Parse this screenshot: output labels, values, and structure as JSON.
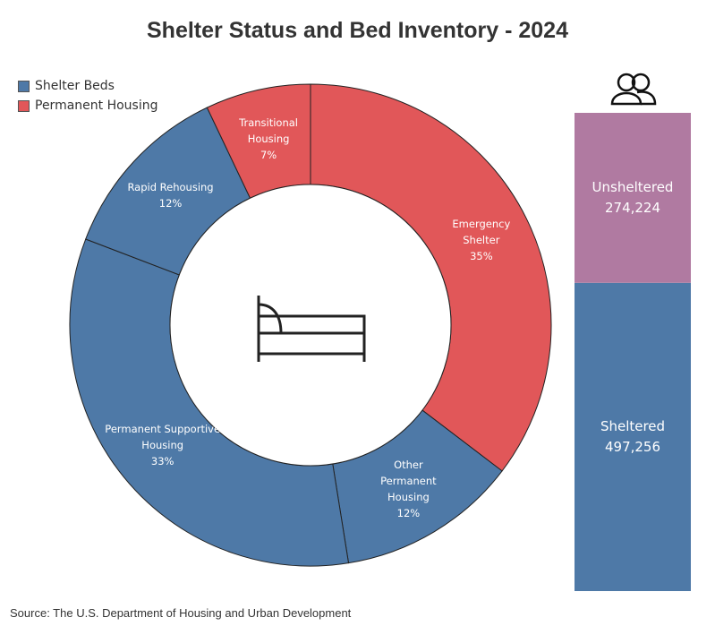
{
  "title": "Shelter Status and Bed Inventory - 2024",
  "source": "Source: The U.S. Department of Housing and Urban Development",
  "chart_data": [
    {
      "type": "donut",
      "categories": [
        "Emergency Shelter",
        "Other Permanent Housing",
        "Permanent Supportive Housing",
        "Rapid Rehousing",
        "Transitional Housing"
      ],
      "values": [
        35,
        12,
        33,
        12,
        7
      ],
      "value_labels": [
        "35%",
        "12%",
        "33%",
        "12%",
        "7%"
      ],
      "colors": [
        "#e15759",
        "#4e79a7",
        "#4e79a7",
        "#4e79a7",
        "#e15759"
      ],
      "legend": [
        {
          "name": "Shelter Beds",
          "color": "#4e79a7"
        },
        {
          "name": "Permanent Housing",
          "color": "#e15759"
        }
      ],
      "legend_position": "top-left"
    },
    {
      "type": "stacked-bar",
      "categories": [
        null
      ],
      "series": [
        {
          "name": "Sheltered",
          "color": "#4e79a7",
          "values": [
            497256
          ],
          "value_labels": [
            "497,256"
          ]
        },
        {
          "name": "Unsheltered",
          "color": "#b07aa1",
          "values": [
            274224
          ],
          "value_labels": [
            "274,224"
          ]
        }
      ]
    }
  ]
}
